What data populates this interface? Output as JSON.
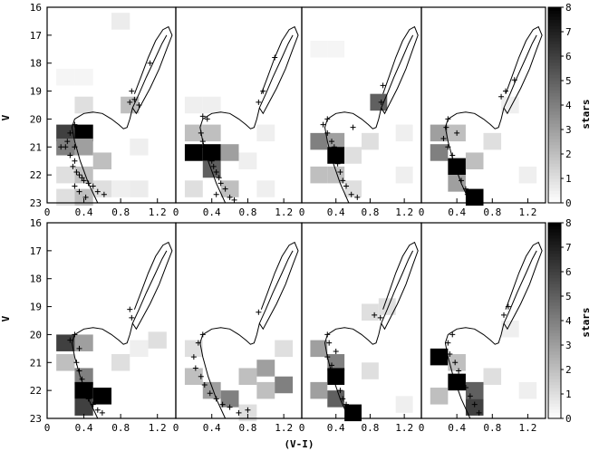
{
  "figure": {
    "xlabel": "(V-I)",
    "ylabel": "V",
    "colorbar_label": "stars",
    "xlim": [
      0,
      1.4
    ],
    "ylim": [
      16,
      23
    ],
    "y_ticks": [
      "16",
      "17",
      "18",
      "19",
      "20",
      "21",
      "22",
      "23"
    ],
    "x_ticks": [
      "0",
      "0.4",
      "0.8",
      "1.2"
    ],
    "colorbar_ticks": [
      "0",
      "1",
      "2",
      "3",
      "4",
      "5",
      "6",
      "7",
      "8"
    ]
  },
  "chart_data": [
    {
      "type": "heatmap",
      "panel": "row1-col1",
      "xlim": [
        0,
        1.4
      ],
      "ylim": [
        16,
        23
      ],
      "color_range": [
        0,
        8
      ],
      "cells": [
        [
          0.8,
          16.5,
          0.6
        ],
        [
          0.2,
          18.5,
          0.3
        ],
        [
          0.4,
          18.5,
          0.3
        ],
        [
          0.4,
          19.5,
          1.0
        ],
        [
          0.9,
          19.5,
          2.0
        ],
        [
          0.2,
          20.5,
          6.0
        ],
        [
          0.4,
          20.5,
          8.0
        ],
        [
          0.2,
          21.0,
          4.0
        ],
        [
          0.4,
          21.0,
          3.0
        ],
        [
          0.6,
          21.5,
          2.0
        ],
        [
          0.2,
          22.0,
          1.0
        ],
        [
          0.4,
          22.0,
          2.0
        ],
        [
          0.6,
          22.5,
          1.0
        ],
        [
          0.8,
          22.5,
          0.5
        ],
        [
          0.2,
          22.8,
          1.0
        ],
        [
          0.4,
          22.8,
          2.0
        ],
        [
          1.0,
          21.0,
          0.5
        ],
        [
          1.0,
          22.5,
          0.6
        ]
      ],
      "stars": [
        [
          0.95,
          19.3
        ],
        [
          0.9,
          19.4
        ],
        [
          1.0,
          19.5
        ],
        [
          0.92,
          19.0
        ],
        [
          1.12,
          18.0
        ],
        [
          0.3,
          20.2
        ],
        [
          0.25,
          20.5
        ],
        [
          0.22,
          20.8
        ],
        [
          0.2,
          21.0
        ],
        [
          0.3,
          21.0
        ],
        [
          0.25,
          21.3
        ],
        [
          0.3,
          21.5
        ],
        [
          0.28,
          21.7
        ],
        [
          0.32,
          21.9
        ],
        [
          0.35,
          22.0
        ],
        [
          0.38,
          22.1
        ],
        [
          0.4,
          22.2
        ],
        [
          0.45,
          22.3
        ],
        [
          0.5,
          22.4
        ],
        [
          0.55,
          22.6
        ],
        [
          0.62,
          22.7
        ],
        [
          0.15,
          21.0
        ],
        [
          0.35,
          22.6
        ],
        [
          0.42,
          22.8
        ],
        [
          0.3,
          22.4
        ]
      ]
    },
    {
      "type": "heatmap",
      "panel": "row1-col2",
      "xlim": [
        0,
        1.4
      ],
      "ylim": [
        16,
        23
      ],
      "color_range": [
        0,
        8
      ],
      "cells": [
        [
          0.2,
          19.5,
          0.5
        ],
        [
          0.4,
          19.5,
          0.5
        ],
        [
          0.2,
          20.5,
          2.0
        ],
        [
          0.4,
          20.5,
          2.0
        ],
        [
          0.2,
          21.2,
          8.0
        ],
        [
          0.4,
          21.2,
          8.0
        ],
        [
          0.6,
          21.2,
          3.0
        ],
        [
          0.4,
          21.8,
          5.0
        ],
        [
          0.2,
          22.5,
          1.0
        ],
        [
          0.6,
          22.5,
          2.0
        ],
        [
          0.8,
          21.5,
          0.5
        ],
        [
          1.0,
          20.5,
          0.5
        ],
        [
          1.0,
          22.5,
          0.5
        ]
      ],
      "stars": [
        [
          0.92,
          19.4
        ],
        [
          0.97,
          19.0
        ],
        [
          1.1,
          17.8
        ],
        [
          0.3,
          19.9
        ],
        [
          0.35,
          20.0
        ],
        [
          0.28,
          20.5
        ],
        [
          0.3,
          20.8
        ],
        [
          0.32,
          21.0
        ],
        [
          0.35,
          21.2
        ],
        [
          0.4,
          21.5
        ],
        [
          0.42,
          21.7
        ],
        [
          0.45,
          21.9
        ],
        [
          0.48,
          22.1
        ],
        [
          0.5,
          22.3
        ],
        [
          0.55,
          22.5
        ],
        [
          0.6,
          22.8
        ],
        [
          0.65,
          22.9
        ],
        [
          0.45,
          22.7
        ]
      ]
    },
    {
      "type": "heatmap",
      "panel": "row1-col3",
      "xlim": [
        0,
        1.4
      ],
      "ylim": [
        16,
        23
      ],
      "color_range": [
        0,
        8
      ],
      "cells": [
        [
          0.2,
          17.5,
          0.3
        ],
        [
          0.4,
          17.5,
          0.3
        ],
        [
          0.9,
          19.4,
          5.0
        ],
        [
          0.2,
          20.8,
          4.0
        ],
        [
          0.4,
          20.8,
          3.0
        ],
        [
          0.4,
          21.3,
          8.0
        ],
        [
          0.6,
          21.3,
          1.0
        ],
        [
          0.8,
          20.8,
          1.0
        ],
        [
          0.2,
          22.0,
          2.0
        ],
        [
          0.4,
          22.0,
          2.0
        ],
        [
          0.6,
          22.5,
          1.0
        ],
        [
          1.2,
          20.5,
          0.5
        ],
        [
          1.2,
          22.0,
          0.5
        ]
      ],
      "stars": [
        [
          0.93,
          19.4
        ],
        [
          0.95,
          18.8
        ],
        [
          0.3,
          20.0
        ],
        [
          0.25,
          20.2
        ],
        [
          0.3,
          20.5
        ],
        [
          0.35,
          20.8
        ],
        [
          0.38,
          21.0
        ],
        [
          0.4,
          21.3
        ],
        [
          0.42,
          21.6
        ],
        [
          0.45,
          21.9
        ],
        [
          0.48,
          22.2
        ],
        [
          0.52,
          22.4
        ],
        [
          0.58,
          22.7
        ],
        [
          0.65,
          22.8
        ],
        [
          0.6,
          20.3
        ]
      ]
    },
    {
      "type": "heatmap",
      "panel": "row1-col4",
      "xlim": [
        0,
        1.4
      ],
      "ylim": [
        16,
        23
      ],
      "color_range": [
        0,
        8
      ],
      "cells": [
        [
          0.2,
          20.5,
          3.0
        ],
        [
          0.4,
          20.5,
          2.0
        ],
        [
          0.2,
          21.2,
          4.0
        ],
        [
          0.4,
          21.7,
          8.0
        ],
        [
          0.6,
          21.5,
          2.0
        ],
        [
          0.4,
          22.3,
          3.0
        ],
        [
          0.6,
          22.8,
          8.0
        ],
        [
          0.8,
          20.8,
          1.0
        ],
        [
          1.0,
          19.5,
          0.5
        ],
        [
          1.2,
          22.0,
          0.5
        ]
      ],
      "stars": [
        [
          0.9,
          19.2
        ],
        [
          0.95,
          19.0
        ],
        [
          1.05,
          18.6
        ],
        [
          0.3,
          20.0
        ],
        [
          0.28,
          20.3
        ],
        [
          0.25,
          20.7
        ],
        [
          0.3,
          21.0
        ],
        [
          0.35,
          21.3
        ],
        [
          0.38,
          21.6
        ],
        [
          0.42,
          21.9
        ],
        [
          0.45,
          22.2
        ],
        [
          0.5,
          22.5
        ],
        [
          0.52,
          22.7
        ],
        [
          0.4,
          20.5
        ]
      ]
    },
    {
      "type": "heatmap",
      "panel": "row2-col1",
      "xlim": [
        0,
        1.4
      ],
      "ylim": [
        16,
        23
      ],
      "color_range": [
        0,
        8
      ],
      "cells": [
        [
          0.2,
          20.3,
          6.0
        ],
        [
          0.4,
          20.3,
          3.0
        ],
        [
          0.2,
          21.0,
          2.0
        ],
        [
          0.4,
          21.5,
          4.0
        ],
        [
          0.4,
          22.0,
          8.0
        ],
        [
          0.6,
          22.2,
          8.0
        ],
        [
          0.4,
          22.6,
          6.0
        ],
        [
          0.8,
          21.0,
          1.0
        ],
        [
          1.0,
          20.5,
          0.5
        ],
        [
          1.2,
          20.2,
          1.0
        ]
      ],
      "stars": [
        [
          0.92,
          19.4
        ],
        [
          0.9,
          19.1
        ],
        [
          0.3,
          20.0
        ],
        [
          0.25,
          20.2
        ],
        [
          0.35,
          20.5
        ],
        [
          0.32,
          21.0
        ],
        [
          0.35,
          21.3
        ],
        [
          0.38,
          21.6
        ],
        [
          0.4,
          21.9
        ],
        [
          0.42,
          22.1
        ],
        [
          0.45,
          22.3
        ],
        [
          0.5,
          22.5
        ],
        [
          0.55,
          22.7
        ],
        [
          0.6,
          22.8
        ]
      ]
    },
    {
      "type": "heatmap",
      "panel": "row2-col2",
      "xlim": [
        0,
        1.4
      ],
      "ylim": [
        16,
        23
      ],
      "color_range": [
        0,
        8
      ],
      "cells": [
        [
          0.2,
          20.5,
          1.0
        ],
        [
          0.2,
          21.5,
          2.0
        ],
        [
          0.4,
          22.0,
          3.0
        ],
        [
          0.6,
          22.3,
          4.0
        ],
        [
          0.8,
          21.5,
          2.0
        ],
        [
          1.0,
          21.2,
          3.0
        ],
        [
          1.0,
          22.0,
          2.0
        ],
        [
          1.2,
          21.8,
          4.0
        ],
        [
          1.2,
          20.5,
          1.0
        ],
        [
          0.8,
          22.8,
          1.0
        ]
      ],
      "stars": [
        [
          0.92,
          19.2
        ],
        [
          0.3,
          20.0
        ],
        [
          0.25,
          20.3
        ],
        [
          0.2,
          20.8
        ],
        [
          0.22,
          21.2
        ],
        [
          0.28,
          21.5
        ],
        [
          0.32,
          21.8
        ],
        [
          0.38,
          22.1
        ],
        [
          0.45,
          22.3
        ],
        [
          0.52,
          22.5
        ],
        [
          0.6,
          22.6
        ],
        [
          0.7,
          22.8
        ],
        [
          0.8,
          22.7
        ]
      ]
    },
    {
      "type": "heatmap",
      "panel": "row2-col3",
      "xlim": [
        0,
        1.4
      ],
      "ylim": [
        16,
        23
      ],
      "color_range": [
        0,
        8
      ],
      "cells": [
        [
          0.2,
          20.5,
          3.0
        ],
        [
          0.4,
          21.0,
          4.0
        ],
        [
          0.4,
          21.5,
          8.0
        ],
        [
          0.2,
          22.0,
          3.0
        ],
        [
          0.4,
          22.3,
          5.0
        ],
        [
          0.6,
          22.8,
          8.0
        ],
        [
          0.8,
          19.2,
          1.0
        ],
        [
          1.0,
          19.0,
          1.0
        ],
        [
          0.8,
          21.3,
          1.0
        ],
        [
          1.2,
          22.5,
          0.5
        ]
      ],
      "stars": [
        [
          0.92,
          19.4
        ],
        [
          0.85,
          19.3
        ],
        [
          0.3,
          20.0
        ],
        [
          0.32,
          20.3
        ],
        [
          0.3,
          20.8
        ],
        [
          0.35,
          21.1
        ],
        [
          0.38,
          21.4
        ],
        [
          0.42,
          21.7
        ],
        [
          0.45,
          22.0
        ],
        [
          0.48,
          22.3
        ],
        [
          0.52,
          22.5
        ],
        [
          0.58,
          22.8
        ],
        [
          0.4,
          20.6
        ]
      ]
    },
    {
      "type": "heatmap",
      "panel": "row2-col4",
      "xlim": [
        0,
        1.4
      ],
      "ylim": [
        16,
        23
      ],
      "color_range": [
        0,
        8
      ],
      "cells": [
        [
          0.2,
          20.8,
          8.0
        ],
        [
          0.4,
          21.0,
          2.0
        ],
        [
          0.4,
          21.7,
          8.0
        ],
        [
          0.6,
          22.0,
          5.0
        ],
        [
          0.6,
          22.6,
          6.0
        ],
        [
          0.8,
          21.5,
          1.0
        ],
        [
          0.2,
          22.2,
          2.0
        ],
        [
          1.0,
          19.8,
          0.5
        ],
        [
          1.2,
          22.0,
          0.5
        ]
      ],
      "stars": [
        [
          0.93,
          19.3
        ],
        [
          0.98,
          19.0
        ],
        [
          0.35,
          20.0
        ],
        [
          0.3,
          20.3
        ],
        [
          0.32,
          20.7
        ],
        [
          0.38,
          21.0
        ],
        [
          0.42,
          21.3
        ],
        [
          0.45,
          21.6
        ],
        [
          0.5,
          21.9
        ],
        [
          0.55,
          22.2
        ],
        [
          0.6,
          22.5
        ],
        [
          0.65,
          22.8
        ]
      ]
    }
  ],
  "isochrone": {
    "lower_branch": [
      [
        0.55,
        23.0
      ],
      [
        0.45,
        22.3
      ],
      [
        0.36,
        21.5
      ],
      [
        0.3,
        20.8
      ],
      [
        0.27,
        20.3
      ],
      [
        0.3,
        20.0
      ],
      [
        0.4,
        19.8
      ],
      [
        0.5,
        19.75
      ],
      [
        0.6,
        19.8
      ],
      [
        0.7,
        20.0
      ],
      [
        0.78,
        20.2
      ],
      [
        0.83,
        20.35
      ],
      [
        0.87,
        20.3
      ],
      [
        0.9,
        20.0
      ],
      [
        0.93,
        19.6
      ],
      [
        1.0,
        19.1
      ],
      [
        1.08,
        18.5
      ],
      [
        1.18,
        17.8
      ],
      [
        1.25,
        17.3
      ],
      [
        1.3,
        17.0
      ]
    ],
    "rgb_upper": [
      [
        0.95,
        19.1
      ],
      [
        1.02,
        18.5
      ],
      [
        1.1,
        17.8
      ],
      [
        1.18,
        17.2
      ],
      [
        1.26,
        16.8
      ],
      [
        1.32,
        16.7
      ],
      [
        1.36,
        17.0
      ],
      [
        1.3,
        17.5
      ],
      [
        1.22,
        18.2
      ],
      [
        1.12,
        18.9
      ],
      [
        1.02,
        19.5
      ],
      [
        0.97,
        19.8
      ],
      [
        0.93,
        19.6
      ]
    ]
  }
}
